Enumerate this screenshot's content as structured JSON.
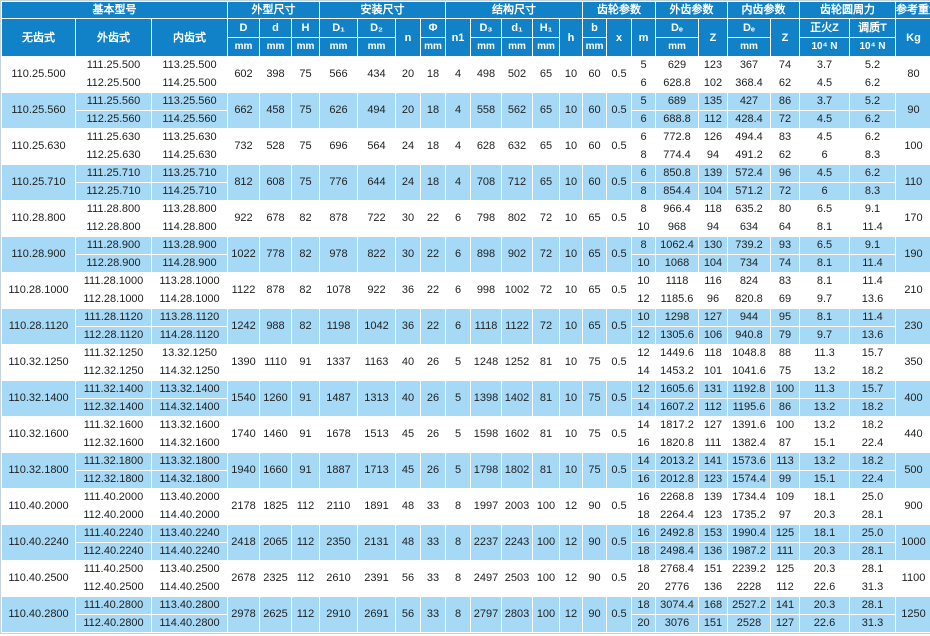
{
  "header": {
    "groups": [
      "基本型号",
      "外型尺寸",
      "安装尺寸",
      "结构尺寸",
      "齿轮参数",
      "外齿参数",
      "内齿参数",
      "齿轮圆周力",
      "参考重量"
    ],
    "cols": {
      "no_teeth": "无齿式",
      "ext_teeth": "外齿式",
      "int_teeth": "内齿式",
      "D": "D",
      "d": "d",
      "H": "H",
      "D1": "D₁",
      "D2": "D₂",
      "n": "n",
      "phi": "Φ",
      "n1": "n1",
      "D3": "D₃",
      "d1": "d₁",
      "H1": "H₁",
      "h": "h",
      "b": "b",
      "x": "x",
      "m": "m",
      "De_ext": "Dₑ",
      "Z_ext": "Z",
      "De_int": "Dₑ",
      "Z_int": "Z",
      "fz": "正火Z",
      "ft": "调质T",
      "kg": "Kg",
      "mm": "mm",
      "force_unit": "10⁴ N"
    }
  },
  "colors": {
    "header_blue": "#1182c7",
    "row_blue": "#a6d9f6",
    "row_white": "#ffffff"
  },
  "rows": [
    {
      "base": "110.25.500",
      "outer_models": [
        "111.25.500",
        "112.25.500"
      ],
      "inner_models": [
        "113.25.500",
        "114.25.500"
      ],
      "D": "602",
      "d": "398",
      "H": "75",
      "D1": "566",
      "D2": "434",
      "n": "20",
      "phi": "18",
      "n1": "4",
      "D3": "498",
      "d1": "502",
      "H1": "65",
      "h": "10",
      "b": "60",
      "x": "0.5",
      "sub": [
        {
          "m": "5",
          "De_ext": "629",
          "Z_ext": "123",
          "De_int": "367",
          "Z_int": "74",
          "fz": "3.7",
          "ft": "5.2"
        },
        {
          "m": "6",
          "De_ext": "628.8",
          "Z_ext": "102",
          "De_int": "368.4",
          "Z_int": "62",
          "fz": "4.5",
          "ft": "6.2"
        }
      ],
      "kg": "80"
    },
    {
      "base": "110.25.560",
      "outer_models": [
        "111.25.560",
        "112.25.560"
      ],
      "inner_models": [
        "113.25.560",
        "114.25.560"
      ],
      "D": "662",
      "d": "458",
      "H": "75",
      "D1": "626",
      "D2": "494",
      "n": "20",
      "phi": "18",
      "n1": "4",
      "D3": "558",
      "d1": "562",
      "H1": "65",
      "h": "10",
      "b": "60",
      "x": "0.5",
      "sub": [
        {
          "m": "5",
          "De_ext": "689",
          "Z_ext": "135",
          "De_int": "427",
          "Z_int": "86",
          "fz": "3.7",
          "ft": "5.2"
        },
        {
          "m": "6",
          "De_ext": "688.8",
          "Z_ext": "112",
          "De_int": "428.4",
          "Z_int": "72",
          "fz": "4.5",
          "ft": "6.2"
        }
      ],
      "kg": "90"
    },
    {
      "base": "110.25.630",
      "outer_models": [
        "111.25.630",
        "112.25.630"
      ],
      "inner_models": [
        "113.25.630",
        "114.25.630"
      ],
      "D": "732",
      "d": "528",
      "H": "75",
      "D1": "696",
      "D2": "564",
      "n": "24",
      "phi": "18",
      "n1": "4",
      "D3": "628",
      "d1": "632",
      "H1": "65",
      "h": "10",
      "b": "60",
      "x": "0.5",
      "sub": [
        {
          "m": "6",
          "De_ext": "772.8",
          "Z_ext": "126",
          "De_int": "494.4",
          "Z_int": "83",
          "fz": "4.5",
          "ft": "6.2"
        },
        {
          "m": "8",
          "De_ext": "774.4",
          "Z_ext": "94",
          "De_int": "491.2",
          "Z_int": "62",
          "fz": "6",
          "ft": "8.3"
        }
      ],
      "kg": "100"
    },
    {
      "base": "110.25.710",
      "outer_models": [
        "111.25.710",
        "112.25.710"
      ],
      "inner_models": [
        "113.25.710",
        "114.25.710"
      ],
      "D": "812",
      "d": "608",
      "H": "75",
      "D1": "776",
      "D2": "644",
      "n": "24",
      "phi": "18",
      "n1": "4",
      "D3": "708",
      "d1": "712",
      "H1": "65",
      "h": "10",
      "b": "60",
      "x": "0.5",
      "sub": [
        {
          "m": "6",
          "De_ext": "850.8",
          "Z_ext": "139",
          "De_int": "572.4",
          "Z_int": "96",
          "fz": "4.5",
          "ft": "6.2"
        },
        {
          "m": "8",
          "De_ext": "854.4",
          "Z_ext": "104",
          "De_int": "571.2",
          "Z_int": "72",
          "fz": "6",
          "ft": "8.3"
        }
      ],
      "kg": "110"
    },
    {
      "base": "110.28.800",
      "outer_models": [
        "111.28.800",
        "112.28.800"
      ],
      "inner_models": [
        "113.28.800",
        "114.28.800"
      ],
      "D": "922",
      "d": "678",
      "H": "82",
      "D1": "878",
      "D2": "722",
      "n": "30",
      "phi": "22",
      "n1": "6",
      "D3": "798",
      "d1": "802",
      "H1": "72",
      "h": "10",
      "b": "65",
      "x": "0.5",
      "sub": [
        {
          "m": "8",
          "De_ext": "966.4",
          "Z_ext": "118",
          "De_int": "635.2",
          "Z_int": "80",
          "fz": "6.5",
          "ft": "9.1"
        },
        {
          "m": "10",
          "De_ext": "968",
          "Z_ext": "94",
          "De_int": "634",
          "Z_int": "64",
          "fz": "8.1",
          "ft": "11.4"
        }
      ],
      "kg": "170"
    },
    {
      "base": "110.28.900",
      "outer_models": [
        "111.28.900",
        "112.28.900"
      ],
      "inner_models": [
        "113.28.900",
        "114.28.900"
      ],
      "D": "1022",
      "d": "778",
      "H": "82",
      "D1": "978",
      "D2": "822",
      "n": "30",
      "phi": "22",
      "n1": "6",
      "D3": "898",
      "d1": "902",
      "H1": "72",
      "h": "10",
      "b": "65",
      "x": "0.5",
      "sub": [
        {
          "m": "8",
          "De_ext": "1062.4",
          "Z_ext": "130",
          "De_int": "739.2",
          "Z_int": "93",
          "fz": "6.5",
          "ft": "9.1"
        },
        {
          "m": "10",
          "De_ext": "1068",
          "Z_ext": "104",
          "De_int": "734",
          "Z_int": "74",
          "fz": "8.1",
          "ft": "11.4"
        }
      ],
      "kg": "190"
    },
    {
      "base": "110.28.1000",
      "outer_models": [
        "111.28.1000",
        "112.28.1000"
      ],
      "inner_models": [
        "113.28.1000",
        "114.28.1000"
      ],
      "D": "1122",
      "d": "878",
      "H": "82",
      "D1": "1078",
      "D2": "922",
      "n": "36",
      "phi": "22",
      "n1": "6",
      "D3": "998",
      "d1": "1002",
      "H1": "72",
      "h": "10",
      "b": "65",
      "x": "0.5",
      "sub": [
        {
          "m": "10",
          "De_ext": "1118",
          "Z_ext": "116",
          "De_int": "824",
          "Z_int": "83",
          "fz": "8.1",
          "ft": "11.4"
        },
        {
          "m": "12",
          "De_ext": "1185.6",
          "Z_ext": "96",
          "De_int": "820.8",
          "Z_int": "69",
          "fz": "9.7",
          "ft": "13.6"
        }
      ],
      "kg": "210"
    },
    {
      "base": "110.28.1120",
      "outer_models": [
        "111.28.1120",
        "112.28.1120"
      ],
      "inner_models": [
        "113.28.1120",
        "114.28.1120"
      ],
      "D": "1242",
      "d": "988",
      "H": "82",
      "D1": "1198",
      "D2": "1042",
      "n": "36",
      "phi": "22",
      "n1": "6",
      "D3": "1118",
      "d1": "1122",
      "H1": "72",
      "h": "10",
      "b": "65",
      "x": "0.5",
      "sub": [
        {
          "m": "10",
          "De_ext": "1298",
          "Z_ext": "127",
          "De_int": "944",
          "Z_int": "95",
          "fz": "8.1",
          "ft": "11.4"
        },
        {
          "m": "12",
          "De_ext": "1305.6",
          "Z_ext": "106",
          "De_int": "940.8",
          "Z_int": "79",
          "fz": "9.7",
          "ft": "13.6"
        }
      ],
      "kg": "230"
    },
    {
      "base": "110.32.1250",
      "outer_models": [
        "111.32.1250",
        "112.32.1250"
      ],
      "inner_models": [
        "13.32.1250",
        "114.32.1250"
      ],
      "D": "1390",
      "d": "1110",
      "H": "91",
      "D1": "1337",
      "D2": "1163",
      "n": "40",
      "phi": "26",
      "n1": "5",
      "D3": "1248",
      "d1": "1252",
      "H1": "81",
      "h": "10",
      "b": "75",
      "x": "0.5",
      "sub": [
        {
          "m": "12",
          "De_ext": "1449.6",
          "Z_ext": "118",
          "De_int": "1048.8",
          "Z_int": "88",
          "fz": "11.3",
          "ft": "15.7"
        },
        {
          "m": "14",
          "De_ext": "1453.2",
          "Z_ext": "101",
          "De_int": "1041.6",
          "Z_int": "75",
          "fz": "13.2",
          "ft": "18.2"
        }
      ],
      "kg": "350"
    },
    {
      "base": "110.32.1400",
      "outer_models": [
        "111.32.1400",
        "112.32.1400"
      ],
      "inner_models": [
        "113.32.1400",
        "114.32.1400"
      ],
      "D": "1540",
      "d": "1260",
      "H": "91",
      "D1": "1487",
      "D2": "1313",
      "n": "40",
      "phi": "26",
      "n1": "5",
      "D3": "1398",
      "d1": "1402",
      "H1": "81",
      "h": "10",
      "b": "75",
      "x": "0.5",
      "sub": [
        {
          "m": "12",
          "De_ext": "1605.6",
          "Z_ext": "131",
          "De_int": "1192.8",
          "Z_int": "100",
          "fz": "11.3",
          "ft": "15.7"
        },
        {
          "m": "14",
          "De_ext": "1607.2",
          "Z_ext": "112",
          "De_int": "1195.6",
          "Z_int": "86",
          "fz": "13.2",
          "ft": "18.2"
        }
      ],
      "kg": "400"
    },
    {
      "base": "110.32.1600",
      "outer_models": [
        "111.32.1600",
        "112.32.1600"
      ],
      "inner_models": [
        "113.32.1600",
        "114.32.1600"
      ],
      "D": "1740",
      "d": "1460",
      "H": "91",
      "D1": "1678",
      "D2": "1513",
      "n": "45",
      "phi": "26",
      "n1": "5",
      "D3": "1598",
      "d1": "1602",
      "H1": "81",
      "h": "10",
      "b": "75",
      "x": "0.5",
      "sub": [
        {
          "m": "14",
          "De_ext": "1817.2",
          "Z_ext": "127",
          "De_int": "1391.6",
          "Z_int": "100",
          "fz": "13.2",
          "ft": "18.2"
        },
        {
          "m": "16",
          "De_ext": "1820.8",
          "Z_ext": "111",
          "De_int": "1382.4",
          "Z_int": "87",
          "fz": "15.1",
          "ft": "22.4"
        }
      ],
      "kg": "440"
    },
    {
      "base": "110.32.1800",
      "outer_models": [
        "111.32.1800",
        "112.32.1800"
      ],
      "inner_models": [
        "113.32.1800",
        "114.32.1800"
      ],
      "D": "1940",
      "d": "1660",
      "H": "91",
      "D1": "1887",
      "D2": "1713",
      "n": "45",
      "phi": "26",
      "n1": "5",
      "D3": "1798",
      "d1": "1802",
      "H1": "81",
      "h": "10",
      "b": "75",
      "x": "0.5",
      "sub": [
        {
          "m": "14",
          "De_ext": "2013.2",
          "Z_ext": "141",
          "De_int": "1573.6",
          "Z_int": "113",
          "fz": "13.2",
          "ft": "18.2"
        },
        {
          "m": "16",
          "De_ext": "2012.8",
          "Z_ext": "123",
          "De_int": "1574.4",
          "Z_int": "99",
          "fz": "15.1",
          "ft": "22.4"
        }
      ],
      "kg": "500"
    },
    {
      "base": "110.40.2000",
      "outer_models": [
        "111.40.2000",
        "112.40.2000"
      ],
      "inner_models": [
        "113.40.2000",
        "114.40.2000"
      ],
      "D": "2178",
      "d": "1825",
      "H": "112",
      "D1": "2110",
      "D2": "1891",
      "n": "48",
      "phi": "33",
      "n1": "8",
      "D3": "1997",
      "d1": "2003",
      "H1": "100",
      "h": "12",
      "b": "90",
      "x": "0.5",
      "sub": [
        {
          "m": "16",
          "De_ext": "2268.8",
          "Z_ext": "139",
          "De_int": "1734.4",
          "Z_int": "109",
          "fz": "18.1",
          "ft": "25.0"
        },
        {
          "m": "18",
          "De_ext": "2264.4",
          "Z_ext": "123",
          "De_int": "1735.2",
          "Z_int": "97",
          "fz": "20.3",
          "ft": "28.1"
        }
      ],
      "kg": "900"
    },
    {
      "base": "110.40.2240",
      "outer_models": [
        "111.40.2240",
        "112.40.2240"
      ],
      "inner_models": [
        "113.40.2240",
        "114.40.2240"
      ],
      "D": "2418",
      "d": "2065",
      "H": "112",
      "D1": "2350",
      "D2": "2131",
      "n": "48",
      "phi": "33",
      "n1": "8",
      "D3": "2237",
      "d1": "2243",
      "H1": "100",
      "h": "12",
      "b": "90",
      "x": "0.5",
      "sub": [
        {
          "m": "16",
          "De_ext": "2492.8",
          "Z_ext": "153",
          "De_int": "1990.4",
          "Z_int": "125",
          "fz": "18.1",
          "ft": "25.0"
        },
        {
          "m": "18",
          "De_ext": "2498.4",
          "Z_ext": "136",
          "De_int": "1987.2",
          "Z_int": "111",
          "fz": "20.3",
          "ft": "28.1"
        }
      ],
      "kg": "1000"
    },
    {
      "base": "110.40.2500",
      "outer_models": [
        "111.40.2500",
        "112.40.2500"
      ],
      "inner_models": [
        "113.40.2500",
        "114.40.2500"
      ],
      "D": "2678",
      "d": "2325",
      "H": "112",
      "D1": "2610",
      "D2": "2391",
      "n": "56",
      "phi": "33",
      "n1": "8",
      "D3": "2497",
      "d1": "2503",
      "H1": "100",
      "h": "12",
      "b": "90",
      "x": "0.5",
      "sub": [
        {
          "m": "18",
          "De_ext": "2768.4",
          "Z_ext": "151",
          "De_int": "2239.2",
          "Z_int": "125",
          "fz": "20.3",
          "ft": "28.1"
        },
        {
          "m": "20",
          "De_ext": "2776",
          "Z_ext": "136",
          "De_int": "2228",
          "Z_int": "112",
          "fz": "22.6",
          "ft": "31.3"
        }
      ],
      "kg": "1100"
    },
    {
      "base": "110.40.2800",
      "outer_models": [
        "111.40.2800",
        "112.40.2800"
      ],
      "inner_models": [
        "113.40.2800",
        "114.40.2800"
      ],
      "D": "2978",
      "d": "2625",
      "H": "112",
      "D1": "2910",
      "D2": "2691",
      "n": "56",
      "phi": "33",
      "n1": "8",
      "D3": "2797",
      "d1": "2803",
      "H1": "100",
      "h": "12",
      "b": "90",
      "x": "0.5",
      "sub": [
        {
          "m": "18",
          "De_ext": "3074.4",
          "Z_ext": "168",
          "De_int": "2527.2",
          "Z_int": "141",
          "fz": "20.3",
          "ft": "28.1"
        },
        {
          "m": "20",
          "De_ext": "3076",
          "Z_ext": "151",
          "De_int": "2528",
          "Z_int": "127",
          "fz": "22.6",
          "ft": "31.3"
        }
      ],
      "kg": "1250"
    }
  ]
}
